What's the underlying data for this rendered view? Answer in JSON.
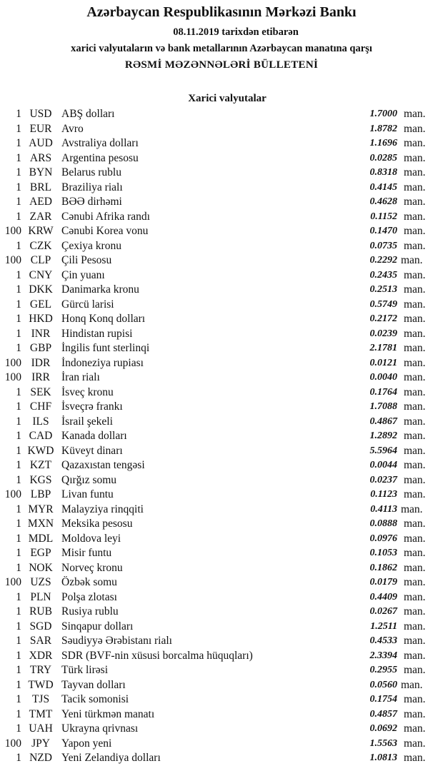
{
  "header": {
    "bank": "Azərbaycan Respublikasının Mərkəzi Bankı",
    "date_line": "08.11.2019  tarixdən etibarən",
    "subtitle": "xarici valyutaların və bank metallarının Azərbaycan manatına qarşı",
    "title": "RƏSMİ MƏZƏNNƏLƏRİ BÜLLETENİ",
    "section": "Xarici valyutalar"
  },
  "unit": "man.",
  "rates": [
    {
      "amount": "1",
      "code": "USD",
      "name": "ABŞ dolları",
      "value": "1.7000"
    },
    {
      "amount": "1",
      "code": "EUR",
      "name": "Avro",
      "value": "1.8782"
    },
    {
      "amount": "1",
      "code": "AUD",
      "name": "Avstraliya dolları",
      "value": "1.1696"
    },
    {
      "amount": "1",
      "code": "ARS",
      "name": "Argentina pesosu",
      "value": "0.0285"
    },
    {
      "amount": "1",
      "code": "BYN",
      "name": "Belarus rublu",
      "value": "0.8318"
    },
    {
      "amount": "1",
      "code": "BRL",
      "name": "Braziliya rialı",
      "value": "0.4145"
    },
    {
      "amount": "1",
      "code": "AED",
      "name": "BƏƏ dirhəmi",
      "value": "0.4628"
    },
    {
      "amount": "1",
      "code": "ZAR",
      "name": "Cənubi Afrika randı",
      "value": "0.1152"
    },
    {
      "amount": "100",
      "code": "KRW",
      "name": "Cənubi Korea vonu",
      "value": "0.1470"
    },
    {
      "amount": "1",
      "code": "CZK",
      "name": "Çexiya kronu",
      "value": "0.0735"
    },
    {
      "amount": "100",
      "code": "CLP",
      "name": "Çili Pesosu",
      "value": "0.2292"
    },
    {
      "amount": "1",
      "code": "CNY",
      "name": "Çin yuanı",
      "value": "0.2435"
    },
    {
      "amount": "1",
      "code": "DKK",
      "name": "Danimarka kronu",
      "value": "0.2513"
    },
    {
      "amount": "1",
      "code": "GEL",
      "name": "Gürcü larisi",
      "value": "0.5749"
    },
    {
      "amount": "1",
      "code": "HKD",
      "name": "Honq Konq dolları",
      "value": "0.2172"
    },
    {
      "amount": "1",
      "code": "INR",
      "name": "Hindistan rupisi",
      "value": "0.0239"
    },
    {
      "amount": "1",
      "code": "GBP",
      "name": "İngilis funt sterlinqi",
      "value": "2.1781"
    },
    {
      "amount": "100",
      "code": "IDR",
      "name": "İndoneziya rupiası",
      "value": "0.0121"
    },
    {
      "amount": "100",
      "code": "IRR",
      "name": "İran rialı",
      "value": "0.0040"
    },
    {
      "amount": "1",
      "code": "SEK",
      "name": "İsveç kronu",
      "value": "0.1764"
    },
    {
      "amount": "1",
      "code": "CHF",
      "name": "İsveçrə frankı",
      "value": "1.7088"
    },
    {
      "amount": "1",
      "code": "ILS",
      "name": "İsrail şekeli",
      "value": "0.4867"
    },
    {
      "amount": "1",
      "code": "CAD",
      "name": "Kanada dolları",
      "value": "1.2892"
    },
    {
      "amount": "1",
      "code": "KWD",
      "name": "Küveyt dinarı",
      "value": "5.5964"
    },
    {
      "amount": "1",
      "code": "KZT",
      "name": "Qazaxıstan tengəsi",
      "value": "0.0044"
    },
    {
      "amount": "1",
      "code": "KGS",
      "name": "Qırğız somu",
      "value": "0.0237"
    },
    {
      "amount": "100",
      "code": "LBP",
      "name": "Livan funtu",
      "value": "0.1123"
    },
    {
      "amount": "1",
      "code": "MYR",
      "name": "Malayziya rinqqiti",
      "value": "0.4113"
    },
    {
      "amount": "1",
      "code": "MXN",
      "name": "Meksika pesosu",
      "value": "0.0888"
    },
    {
      "amount": "1",
      "code": "MDL",
      "name": "Moldova leyi",
      "value": "0.0976"
    },
    {
      "amount": "1",
      "code": "EGP",
      "name": "Misir funtu",
      "value": "0.1053"
    },
    {
      "amount": "1",
      "code": "NOK",
      "name": "Norveç kronu",
      "value": "0.1862"
    },
    {
      "amount": "100",
      "code": "UZS",
      "name": "Özbək somu",
      "value": "0.0179"
    },
    {
      "amount": "1",
      "code": "PLN",
      "name": "Polşa zlotası",
      "value": "0.4409"
    },
    {
      "amount": "1",
      "code": "RUB",
      "name": "Rusiya rublu",
      "value": "0.0267"
    },
    {
      "amount": "1",
      "code": "SGD",
      "name": "Sinqapur dolları",
      "value": "1.2511"
    },
    {
      "amount": "1",
      "code": "SAR",
      "name": "Səudiyyə Ərəbistanı rialı",
      "value": "0.4533"
    },
    {
      "amount": "1",
      "code": "XDR",
      "name": "SDR (BVF-nin xüsusi borcalma hüquqları)",
      "value": "2.3394"
    },
    {
      "amount": "1",
      "code": "TRY",
      "name": "Türk lirəsi",
      "value": "0.2955"
    },
    {
      "amount": "1",
      "code": "TWD",
      "name": "Tayvan dolları",
      "value": "0.0560"
    },
    {
      "amount": "1",
      "code": "TJS",
      "name": "Tacik somonisi",
      "value": "0.1754"
    },
    {
      "amount": "1",
      "code": "TMT",
      "name": "Yeni türkmən manatı",
      "value": "0.4857"
    },
    {
      "amount": "1",
      "code": "UAH",
      "name": "Ukrayna qrivnası",
      "value": "0.0692"
    },
    {
      "amount": "100",
      "code": "JPY",
      "name": "Yapon yeni",
      "value": "1.5563"
    },
    {
      "amount": "1",
      "code": "NZD",
      "name": "Yeni Zelandiya dolları",
      "value": "1.0813"
    }
  ]
}
